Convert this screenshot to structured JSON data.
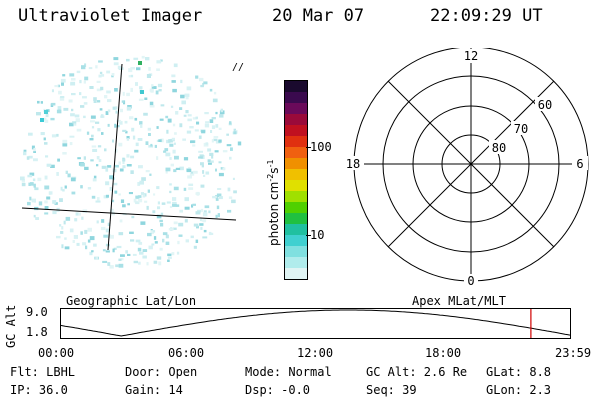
{
  "header": {
    "instrument": "Ultraviolet Imager",
    "date": "20 Mar 07",
    "time": "22:09:29 UT"
  },
  "colorbar": {
    "label": "photon cm",
    "label_exp1": "-2",
    "label_mid": "s",
    "label_exp2": "-1",
    "ticks": [
      "100",
      "10"
    ],
    "colors": [
      "#1a0a2e",
      "#3a0a4e",
      "#6a0a5a",
      "#9a0a3a",
      "#c01020",
      "#e03010",
      "#f06010",
      "#f09000",
      "#f0c000",
      "#e0e000",
      "#a0e000",
      "#50d000",
      "#20c040",
      "#20c0a0",
      "#40d0d0",
      "#80e0e0",
      "#b0ecec",
      "#e0f4f4"
    ]
  },
  "polar_plot": {
    "mlt_labels": {
      "top": "12",
      "left": "18",
      "right": "6",
      "bottom": "0"
    },
    "lat_labels": [
      "60",
      "70",
      "80"
    ]
  },
  "timeline": {
    "left_label": "Geographic Lat/Lon",
    "right_label": "Apex MLat/MLT",
    "axis_title": "GC Alt",
    "y_max": "9.0",
    "y_min": "1.8",
    "time_ticks": [
      "00:00",
      "06:00",
      "12:00",
      "18:00",
      "23:59"
    ],
    "marker_color": "#d00000"
  },
  "footer": {
    "flt": "Flt: LBHL",
    "door": "Door: Open",
    "mode": "Mode: Normal",
    "gc_alt": "GC Alt: 2.6 Re",
    "glat": "GLat:  8.8",
    "ip": "IP: 36.0",
    "gain": "Gain: 14",
    "dsp": "Dsp:  -0.0",
    "seq": "Seq: 39",
    "glon": "GLon:  2.3"
  }
}
